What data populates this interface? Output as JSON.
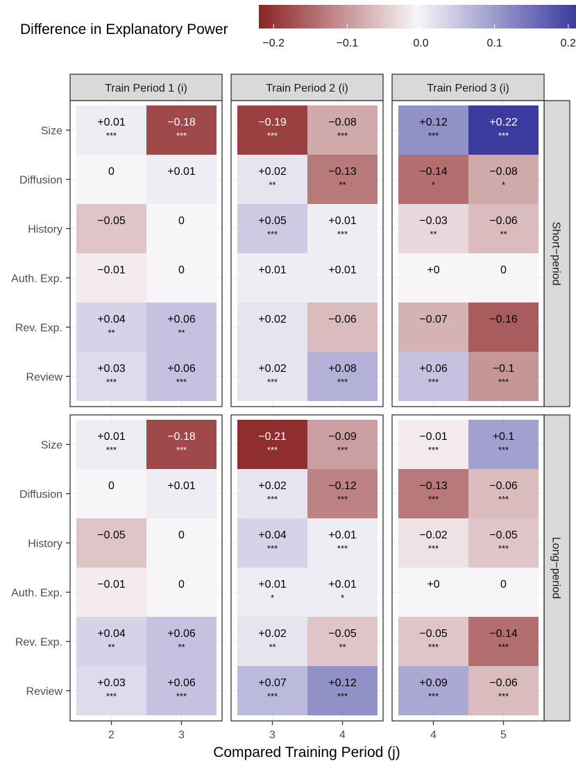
{
  "chart_data": {
    "type": "heatmap",
    "title": "",
    "xlabel": "Compared Training Period (j)",
    "ylabel": "",
    "legend": {
      "title": "Difference in Explanatory Power",
      "range": [
        -0.22,
        0.22
      ],
      "ticks": [
        -0.2,
        -0.1,
        0.0,
        0.1,
        0.2
      ],
      "tick_labels": [
        "−0.2",
        "−0.1",
        "0.0",
        "0.1",
        "0.2"
      ],
      "low_color": "#8b2323",
      "mid_color": "#f8f5f8",
      "high_color": "#3b3b9f",
      "position": "top"
    },
    "rows": [
      "Size",
      "Diffusion",
      "History",
      "Auth. Exp.",
      "Rev. Exp.",
      "Review"
    ],
    "facet_rows": [
      "Short−period",
      "Long−period"
    ],
    "facet_cols": [
      "Train Period 1 (i)",
      "Train Period 2 (i)",
      "Train Period 3 (i)"
    ],
    "facet_col_x": [
      [
        "2",
        "3"
      ],
      [
        "3",
        "4"
      ],
      [
        "4",
        "5"
      ]
    ],
    "panels": [
      {
        "row": "Short−period",
        "col": "Train Period 1 (i)",
        "values": [
          [
            0.01,
            -0.18
          ],
          [
            0,
            0.01
          ],
          [
            -0.05,
            0
          ],
          [
            -0.01,
            0
          ],
          [
            0.04,
            0.06
          ],
          [
            0.03,
            0.06
          ]
        ],
        "labels": [
          [
            "+0.01",
            "−0.18"
          ],
          [
            "0",
            "+0.01"
          ],
          [
            "−0.05",
            "0"
          ],
          [
            "−0.01",
            "0"
          ],
          [
            "+0.04",
            "+0.06"
          ],
          [
            "+0.03",
            "+0.06"
          ]
        ],
        "sig": [
          [
            "***",
            "***"
          ],
          [
            "",
            ""
          ],
          [
            "",
            ""
          ],
          [
            "",
            ""
          ],
          [
            "**",
            "**"
          ],
          [
            "***",
            "***"
          ]
        ]
      },
      {
        "row": "Short−period",
        "col": "Train Period 2 (i)",
        "values": [
          [
            -0.19,
            -0.08
          ],
          [
            0.02,
            -0.13
          ],
          [
            0.05,
            0.01
          ],
          [
            0.01,
            0.01
          ],
          [
            0.02,
            -0.06
          ],
          [
            0.02,
            0.08
          ]
        ],
        "labels": [
          [
            "−0.19",
            "−0.08"
          ],
          [
            "+0.02",
            "−0.13"
          ],
          [
            "+0.05",
            "+0.01"
          ],
          [
            "+0.01",
            "+0.01"
          ],
          [
            "+0.02",
            "−0.06"
          ],
          [
            "+0.02",
            "+0.08"
          ]
        ],
        "sig": [
          [
            "***",
            "***"
          ],
          [
            "**",
            "**"
          ],
          [
            "***",
            "***"
          ],
          [
            "",
            ""
          ],
          [
            "",
            ""
          ],
          [
            "***",
            "***"
          ]
        ]
      },
      {
        "row": "Short−period",
        "col": "Train Period 3 (i)",
        "values": [
          [
            0.12,
            0.22
          ],
          [
            -0.14,
            -0.08
          ],
          [
            -0.03,
            -0.06
          ],
          [
            0,
            0
          ],
          [
            -0.07,
            -0.16
          ],
          [
            0.06,
            -0.1
          ]
        ],
        "labels": [
          [
            "+0.12",
            "+0.22"
          ],
          [
            "−0.14",
            "−0.08"
          ],
          [
            "−0.03",
            "−0.06"
          ],
          [
            "+0",
            "0"
          ],
          [
            "−0.07",
            "−0.16"
          ],
          [
            "+0.06",
            "−0.1"
          ]
        ],
        "sig": [
          [
            "***",
            "***"
          ],
          [
            "*",
            "*"
          ],
          [
            "**",
            "**"
          ],
          [
            "",
            ""
          ],
          [
            "",
            ""
          ],
          [
            "***",
            "***"
          ]
        ]
      },
      {
        "row": "Long−period",
        "col": "Train Period 1 (i)",
        "values": [
          [
            0.01,
            -0.18
          ],
          [
            0,
            0.01
          ],
          [
            -0.05,
            0
          ],
          [
            -0.01,
            0
          ],
          [
            0.04,
            0.06
          ],
          [
            0.03,
            0.06
          ]
        ],
        "labels": [
          [
            "+0.01",
            "−0.18"
          ],
          [
            "0",
            "+0.01"
          ],
          [
            "−0.05",
            "0"
          ],
          [
            "−0.01",
            "0"
          ],
          [
            "+0.04",
            "+0.06"
          ],
          [
            "+0.03",
            "+0.06"
          ]
        ],
        "sig": [
          [
            "***",
            "***"
          ],
          [
            "",
            ""
          ],
          [
            "",
            ""
          ],
          [
            "",
            ""
          ],
          [
            "**",
            "**"
          ],
          [
            "***",
            "***"
          ]
        ]
      },
      {
        "row": "Long−period",
        "col": "Train Period 2 (i)",
        "values": [
          [
            -0.21,
            -0.09
          ],
          [
            0.02,
            -0.12
          ],
          [
            0.04,
            0.01
          ],
          [
            0.01,
            0.01
          ],
          [
            0.02,
            -0.05
          ],
          [
            0.07,
            0.12
          ]
        ],
        "labels": [
          [
            "−0.21",
            "−0.09"
          ],
          [
            "+0.02",
            "−0.12"
          ],
          [
            "+0.04",
            "+0.01"
          ],
          [
            "+0.01",
            "+0.01"
          ],
          [
            "+0.02",
            "−0.05"
          ],
          [
            "+0.07",
            "+0.12"
          ]
        ],
        "sig": [
          [
            "***",
            "***"
          ],
          [
            "***",
            "***"
          ],
          [
            "***",
            "***"
          ],
          [
            "*",
            "*"
          ],
          [
            "**",
            "**"
          ],
          [
            "***",
            "***"
          ]
        ]
      },
      {
        "row": "Long−period",
        "col": "Train Period 3 (i)",
        "values": [
          [
            -0.01,
            0.1
          ],
          [
            -0.13,
            -0.06
          ],
          [
            -0.02,
            -0.05
          ],
          [
            0,
            0
          ],
          [
            -0.05,
            -0.14
          ],
          [
            0.09,
            -0.06
          ]
        ],
        "labels": [
          [
            "−0.01",
            "+0.1"
          ],
          [
            "−0.13",
            "−0.06"
          ],
          [
            "−0.02",
            "−0.05"
          ],
          [
            "+0",
            "0"
          ],
          [
            "−0.05",
            "−0.14"
          ],
          [
            "+0.09",
            "−0.06"
          ]
        ],
        "sig": [
          [
            "***",
            "***"
          ],
          [
            "***",
            "***"
          ],
          [
            "***",
            "***"
          ],
          [
            "",
            ""
          ],
          [
            "***",
            "***"
          ],
          [
            "***",
            "***"
          ]
        ]
      }
    ]
  }
}
